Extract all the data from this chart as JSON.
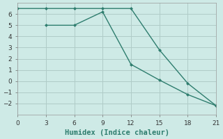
{
  "line1_x": [
    0,
    3,
    6,
    9,
    12,
    15,
    18,
    21
  ],
  "line1_y": [
    6.5,
    6.5,
    6.5,
    6.5,
    6.5,
    2.8,
    -0.2,
    -2.2
  ],
  "line2_x": [
    3,
    6,
    9,
    12,
    15,
    18,
    21
  ],
  "line2_y": [
    5.0,
    5.0,
    6.2,
    1.5,
    0.1,
    -1.2,
    -2.2
  ],
  "line_color": "#2e7d6e",
  "bg_color": "#ceeae6",
  "grid_color": "#b0ccc8",
  "xlabel": "Humidex (Indice chaleur)",
  "xlim": [
    0,
    21
  ],
  "ylim": [
    -3,
    7
  ],
  "xticks": [
    0,
    3,
    6,
    9,
    12,
    15,
    18,
    21
  ],
  "yticks": [
    -2,
    -1,
    0,
    1,
    2,
    3,
    4,
    5,
    6
  ],
  "xlabel_fontsize": 7.5,
  "tick_fontsize": 6.5,
  "linewidth": 1.0,
  "markersize": 2.5
}
